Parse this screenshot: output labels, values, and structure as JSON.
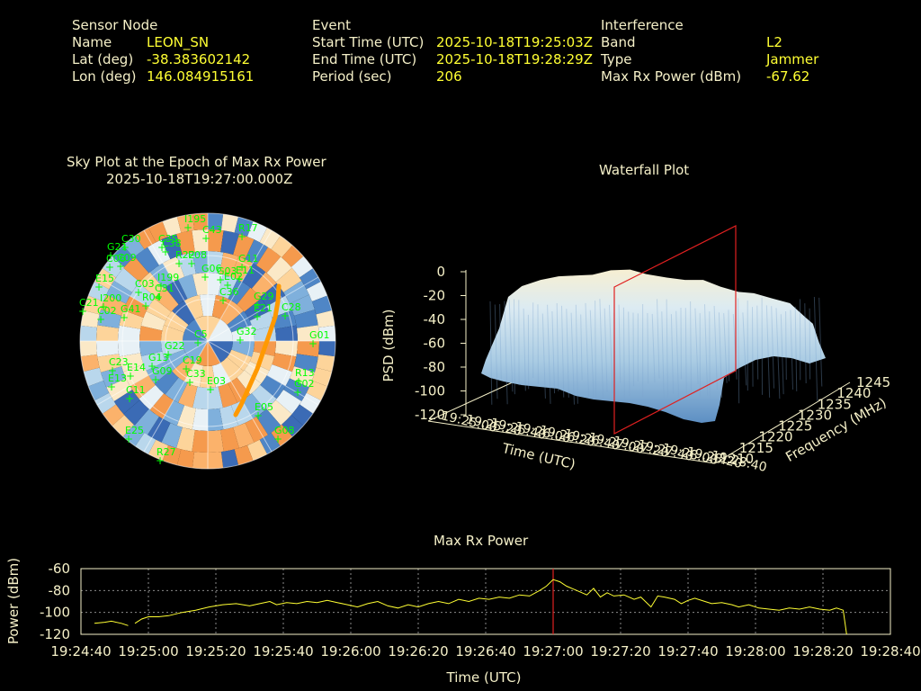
{
  "info": {
    "sensor": {
      "heading": "Sensor Node",
      "name_label": "Name",
      "name_value": "LEON_SN",
      "lat_label": "Lat (deg)",
      "lat_value": "-38.383602142",
      "lon_label": "Lon (deg)",
      "lon_value": "146.084915161"
    },
    "event": {
      "heading": "Event",
      "start_label": "Start Time (UTC)",
      "start_value": "2025-10-18T19:25:03Z",
      "end_label": "End Time (UTC)",
      "end_value": "2025-10-18T19:28:29Z",
      "period_label": "Period (sec)",
      "period_value": "206"
    },
    "interference": {
      "heading": "Interference",
      "band_label": "Band",
      "band_value": "L2",
      "type_label": "Type",
      "type_value": "Jammer",
      "power_label": "Max Rx Power (dBm)",
      "power_value": "-67.62"
    }
  },
  "skyplot": {
    "title": "Sky Plot at the Epoch of Max Rx Power",
    "subtitle": "2025-10-18T19:27:00.000Z",
    "satellites": [
      "I195",
      "R17",
      "C43",
      "C30",
      "C35",
      "G21",
      "C09",
      "C38",
      "C06",
      "R22",
      "G11",
      "E08",
      "E15",
      "I199",
      "C03",
      "R04",
      "C31",
      "E11",
      "G06",
      "G03",
      "G29",
      "E02",
      "C21",
      "E21",
      "I200",
      "C02",
      "G41",
      "C36",
      "C28",
      "G01",
      "C5",
      "G32",
      "G22",
      "C23",
      "G13",
      "E14",
      "G09",
      "E13",
      "E03",
      "C19",
      "C33",
      "C11",
      "R13",
      "G02",
      "E05",
      "G08",
      "E25",
      "R27"
    ],
    "colors": {
      "label": "#00ff00"
    }
  },
  "waterfall": {
    "title": "Waterfall Plot",
    "zlabel": "PSD (dBm)",
    "xlabel": "Time (UTC)",
    "ylabel": "Frequency (MHz)",
    "z_ticks": [
      "0",
      "-20",
      "-40",
      "-60",
      "-80",
      "-100",
      "-120"
    ],
    "time_ticks": [
      "19:25:00",
      "19:25:20",
      "19:25:40",
      "19:26:00",
      "19:26:20",
      "19:26:40",
      "19:27:00",
      "19:27:20",
      "19:27:40",
      "19:28:00",
      "19:28:20",
      "19:28:40"
    ],
    "freq_ticks": [
      "1210",
      "1215",
      "1220",
      "1225",
      "1230",
      "1235",
      "1240",
      "1245"
    ]
  },
  "chart_data": {
    "type": "line",
    "title": "Max Rx Power",
    "xlabel": "Time (UTC)",
    "ylabel": "Power (dBm)",
    "x_ticks": [
      "19:24:40",
      "19:25:00",
      "19:25:20",
      "19:25:40",
      "19:26:00",
      "19:26:20",
      "19:26:40",
      "19:27:00",
      "19:27:20",
      "19:27:40",
      "19:28:00",
      "19:28:20",
      "19:28:40"
    ],
    "x_range_sec": [
      0,
      240
    ],
    "ylim": [
      -120,
      -60
    ],
    "y_ticks": [
      -60,
      -80,
      -100,
      -120
    ],
    "marker_sec": 140,
    "grid": true,
    "series": [
      {
        "color": "#ffff33",
        "points": [
          [
            4,
            -110
          ],
          [
            7,
            -109
          ],
          [
            9,
            -108
          ],
          [
            12,
            -110
          ],
          [
            14,
            -112
          ],
          [
            16,
            -110
          ],
          [
            18,
            -106
          ],
          [
            20,
            -104
          ],
          [
            23,
            -104
          ],
          [
            26,
            -103
          ],
          [
            30,
            -100
          ],
          [
            34,
            -98
          ],
          [
            38,
            -95
          ],
          [
            42,
            -93
          ],
          [
            46,
            -92
          ],
          [
            50,
            -94
          ],
          [
            53,
            -92
          ],
          [
            56,
            -90
          ],
          [
            58,
            -93
          ],
          [
            61,
            -91
          ],
          [
            64,
            -92
          ],
          [
            67,
            -90
          ],
          [
            70,
            -91
          ],
          [
            73,
            -89
          ],
          [
            76,
            -91
          ],
          [
            79,
            -93
          ],
          [
            82,
            -95
          ],
          [
            85,
            -92
          ],
          [
            88,
            -90
          ],
          [
            91,
            -94
          ],
          [
            94,
            -96
          ],
          [
            97,
            -93
          ],
          [
            100,
            -95
          ],
          [
            103,
            -92
          ],
          [
            106,
            -90
          ],
          [
            109,
            -92
          ],
          [
            112,
            -88
          ],
          [
            115,
            -90
          ],
          [
            118,
            -87
          ],
          [
            121,
            -88
          ],
          [
            124,
            -86
          ],
          [
            127,
            -87
          ],
          [
            130,
            -84
          ],
          [
            133,
            -85
          ],
          [
            136,
            -80
          ],
          [
            138,
            -76
          ],
          [
            140,
            -70
          ],
          [
            142,
            -72
          ],
          [
            144,
            -76
          ],
          [
            147,
            -80
          ],
          [
            150,
            -84
          ],
          [
            152,
            -78
          ],
          [
            154,
            -86
          ],
          [
            156,
            -82
          ],
          [
            158,
            -85
          ],
          [
            161,
            -84
          ],
          [
            164,
            -88
          ],
          [
            166,
            -86
          ],
          [
            169,
            -95
          ],
          [
            171,
            -85
          ],
          [
            173,
            -86
          ],
          [
            176,
            -88
          ],
          [
            178,
            -92
          ],
          [
            180,
            -89
          ],
          [
            182,
            -87
          ],
          [
            185,
            -90
          ],
          [
            187,
            -92
          ],
          [
            190,
            -91
          ],
          [
            193,
            -93
          ],
          [
            195,
            -95
          ],
          [
            198,
            -93
          ],
          [
            201,
            -96
          ],
          [
            204,
            -97
          ],
          [
            207,
            -98
          ],
          [
            210,
            -96
          ],
          [
            213,
            -97
          ],
          [
            216,
            -95
          ],
          [
            219,
            -97
          ],
          [
            222,
            -98
          ],
          [
            224,
            -96
          ],
          [
            226,
            -98
          ],
          [
            227,
            -120
          ]
        ]
      }
    ]
  }
}
